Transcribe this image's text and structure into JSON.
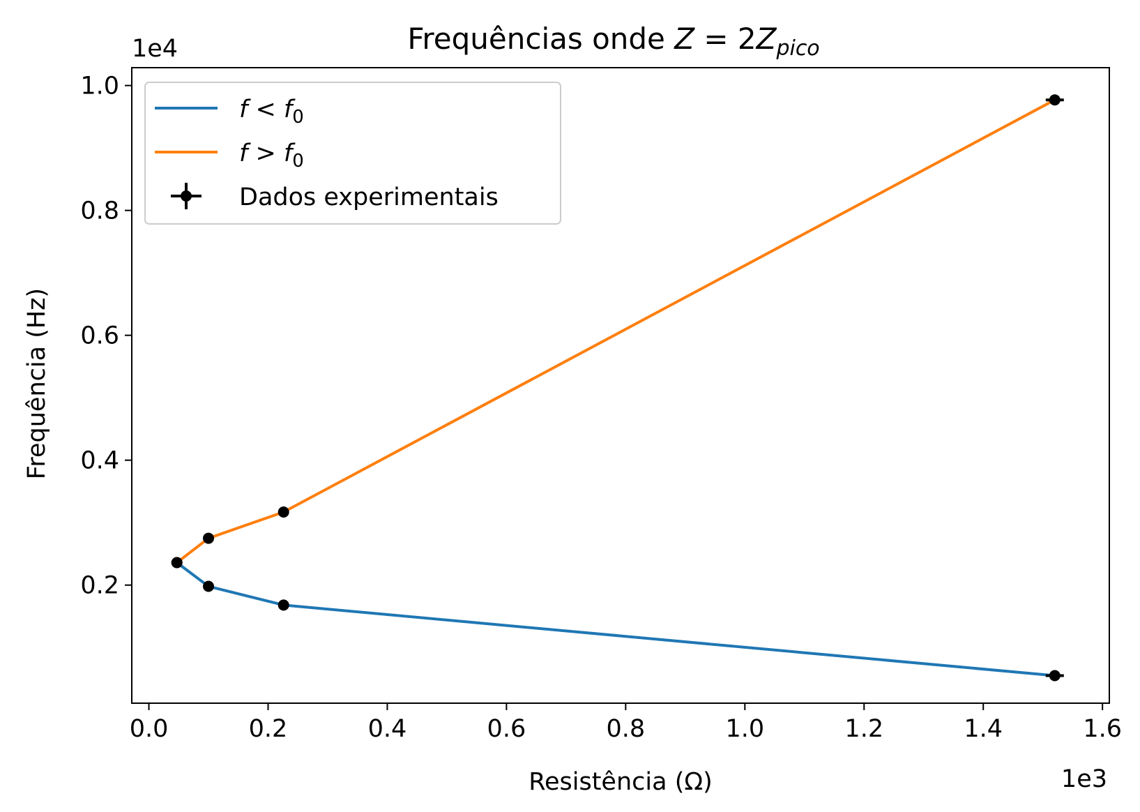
{
  "chart_data": {
    "type": "line",
    "title": {
      "prefix": "Frequências onde ",
      "math_italic": "Z",
      "math_equals": " = 2",
      "math_italic2": "Z",
      "math_subscript": "pico"
    },
    "xlabel": "Resistência (Ω)",
    "ylabel": "Frequência (Hz)",
    "x_offset_label": "1e3",
    "y_offset_label": "1e4",
    "xlim": [
      -0.0287,
      1.6115
    ],
    "ylim": [
      0.0109,
      1.0286
    ],
    "xticks": [
      {
        "value": 0.0,
        "label": "0.0"
      },
      {
        "value": 0.2,
        "label": "0.2"
      },
      {
        "value": 0.4,
        "label": "0.4"
      },
      {
        "value": 0.6,
        "label": "0.6"
      },
      {
        "value": 0.8,
        "label": "0.8"
      },
      {
        "value": 1.0,
        "label": "1.0"
      },
      {
        "value": 1.2,
        "label": "1.2"
      },
      {
        "value": 1.4,
        "label": "1.4"
      },
      {
        "value": 1.6,
        "label": "1.6"
      }
    ],
    "yticks": [
      {
        "value": 0.2,
        "label": "0.2"
      },
      {
        "value": 0.4,
        "label": "0.4"
      },
      {
        "value": 0.6,
        "label": "0.6"
      },
      {
        "value": 0.8,
        "label": "0.8"
      },
      {
        "value": 1.0,
        "label": "1.0"
      }
    ],
    "grid": false,
    "legend_position": "upper left",
    "series": [
      {
        "name": "f < f0",
        "legend_math": {
          "italic": "f",
          "op": " < ",
          "italic2": "f",
          "sub": "0"
        },
        "color": "#1f77b4",
        "x": [
          0.047,
          0.1,
          0.226,
          1.52
        ],
        "y": [
          0.236,
          0.198,
          0.168,
          0.055
        ]
      },
      {
        "name": "f > f0",
        "legend_math": {
          "italic": "f",
          "op": " > ",
          "italic2": "f",
          "sub": "0"
        },
        "color": "#ff7f0e",
        "x": [
          0.047,
          0.1,
          0.226,
          1.52
        ],
        "y": [
          0.236,
          0.275,
          0.317,
          0.977
        ]
      }
    ],
    "experimental": {
      "name": "Dados experimentais",
      "color": "#000000",
      "points": [
        {
          "x": 0.047,
          "y": 0.236,
          "xerr": 0.0
        },
        {
          "x": 0.1,
          "y": 0.198,
          "xerr": 0.0
        },
        {
          "x": 0.226,
          "y": 0.168,
          "xerr": 0.0
        },
        {
          "x": 1.52,
          "y": 0.055,
          "xerr": 0.0152
        },
        {
          "x": 0.047,
          "y": 0.236,
          "xerr": 0.0
        },
        {
          "x": 0.1,
          "y": 0.275,
          "xerr": 0.0
        },
        {
          "x": 0.226,
          "y": 0.317,
          "xerr": 0.0
        },
        {
          "x": 1.52,
          "y": 0.977,
          "xerr": 0.0152
        }
      ]
    }
  }
}
